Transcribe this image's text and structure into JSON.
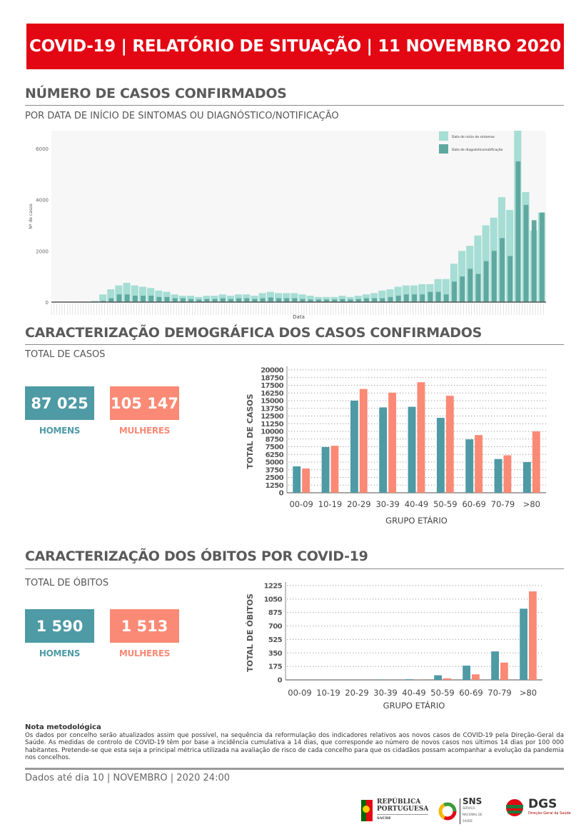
{
  "header": {
    "title": "COVID-19 | RELATÓRIO DE SITUAÇÃO | 11 NOVEMBRO 2020"
  },
  "section1": {
    "title": "NÚMERO DE CASOS CONFIRMADOS",
    "subtitle": "POR DATA DE INÍCIO DE SINTOMAS OU DIAGNÓSTICO/NOTIFICAÇÃO"
  },
  "section2": {
    "title": "CARACTERIZAÇÃO DEMOGRÁFICA DOS CASOS CONFIRMADOS",
    "subtitle": "TOTAL DE CASOS",
    "men_value": "87 025",
    "women_value": "105 147",
    "men_label": "HOMENS",
    "women_label": "MULHERES"
  },
  "section3": {
    "title": "CARACTERIZAÇÃO DOS ÓBITOS POR COVID-19",
    "subtitle": "TOTAL DE ÓBITOS",
    "men_value": "1 590",
    "women_value": "1 513",
    "men_label": "HOMENS",
    "women_label": "MULHERES"
  },
  "colors": {
    "header": "#e30613",
    "men": "#4e9aa5",
    "women": "#fa8a75",
    "onset": "#a6ddd4",
    "diagnosis": "#5fa8a0"
  },
  "chart_data": [
    {
      "type": "bar",
      "ylabel": "Nº de casos",
      "xlabel": "Data",
      "ylim": [
        0,
        6700
      ],
      "yticks": [
        0,
        2000,
        4000,
        6000
      ],
      "grid": false,
      "legend_position": "top-right",
      "series": [
        {
          "name": "Data de início de sintomas",
          "values": [
            0,
            0,
            0,
            0,
            0,
            50,
            300,
            500,
            650,
            750,
            650,
            600,
            550,
            450,
            400,
            300,
            250,
            250,
            200,
            250,
            250,
            300,
            250,
            300,
            300,
            250,
            350,
            400,
            350,
            350,
            350,
            300,
            250,
            200,
            200,
            200,
            250,
            200,
            250,
            300,
            350,
            450,
            500,
            600,
            650,
            650,
            700,
            700,
            900,
            900,
            1500,
            2000,
            2200,
            2600,
            3000,
            3300,
            4100,
            3600,
            6700,
            4300,
            2800,
            3500
          ]
        },
        {
          "name": "Data de diagnóstico/notificação",
          "values": [
            0,
            0,
            0,
            0,
            0,
            0,
            50,
            150,
            300,
            300,
            250,
            250,
            250,
            200,
            200,
            150,
            150,
            120,
            100,
            120,
            120,
            150,
            120,
            150,
            150,
            120,
            150,
            180,
            150,
            150,
            150,
            120,
            100,
            100,
            100,
            100,
            120,
            100,
            120,
            150,
            150,
            150,
            200,
            250,
            300,
            300,
            300,
            400,
            400,
            300,
            800,
            1000,
            1300,
            1100,
            1600,
            2000,
            2500,
            1800,
            5500,
            3800,
            3200,
            3500
          ]
        }
      ]
    },
    {
      "type": "bar",
      "ylabel": "TOTAL DE CASOS",
      "xlabel": "GRUPO ETÁRIO",
      "ylim": [
        0,
        20000
      ],
      "yticks": [
        0,
        1250,
        2500,
        3750,
        5000,
        6250,
        7500,
        8750,
        10000,
        11250,
        12500,
        13750,
        15000,
        16250,
        17500,
        18750,
        20000
      ],
      "grid": true,
      "categories": [
        "00-09",
        "10-19",
        "20-29",
        "30-39",
        "40-49",
        "50-59",
        "60-69",
        "70-79",
        ">80"
      ],
      "series": [
        {
          "values": [
            4300,
            7450,
            15000,
            13900,
            14000,
            12200,
            8700,
            5500,
            5000
          ]
        },
        {
          "values": [
            3950,
            7650,
            16900,
            16300,
            18000,
            15800,
            9400,
            6100,
            10000
          ]
        }
      ]
    },
    {
      "type": "bar",
      "ylabel": "TOTAL DE ÓBITOS",
      "xlabel": "GRUPO ETÁRIO",
      "ylim": [
        0,
        1225
      ],
      "yticks": [
        0,
        175,
        350,
        525,
        700,
        875,
        1050,
        1225
      ],
      "grid": true,
      "categories": [
        "00-09",
        "10-19",
        "20-29",
        "30-39",
        "40-49",
        "50-59",
        "60-69",
        "70-79",
        ">80"
      ],
      "series": [
        {
          "values": [
            0,
            0,
            1,
            2,
            8,
            60,
            185,
            370,
            925
          ]
        },
        {
          "values": [
            0,
            0,
            0,
            1,
            3,
            20,
            72,
            225,
            1150
          ]
        }
      ]
    }
  ],
  "footer": {
    "note_title": "Nota metodológica",
    "note": "Os dados por concelho serão atualizados assim que possível, na sequência da reformulação dos indicadores relativos aos novos casos de COVID-19 pela Direção-Geral da Saúde. As medidas de controlo de COVID-19 têm por base a incidência cumulativa a 14 dias, que corresponde ao número de novos casos nos últimos 14 dias por 100 000 habitantes. Pretende-se que esta seja a principal métrica utilizada na avaliação de risco de cada concelho para que os cidadãos possam acompanhar a evolução da pandemia nos concelhos.",
    "data_date": "Dados até dia 10 | NOVEMBRO | 2020 24:00",
    "logos": {
      "rp_line1": "REPÚBLICA",
      "rp_line2": "PORTUGUESA",
      "rp_sub": "SAÚDE",
      "sns": "SNS",
      "sns_sub": "SERVIÇO NACIONAL DE SAÚDE",
      "dgs": "DGS",
      "dgs_sub": "Direção-Geral da Saúde"
    }
  }
}
